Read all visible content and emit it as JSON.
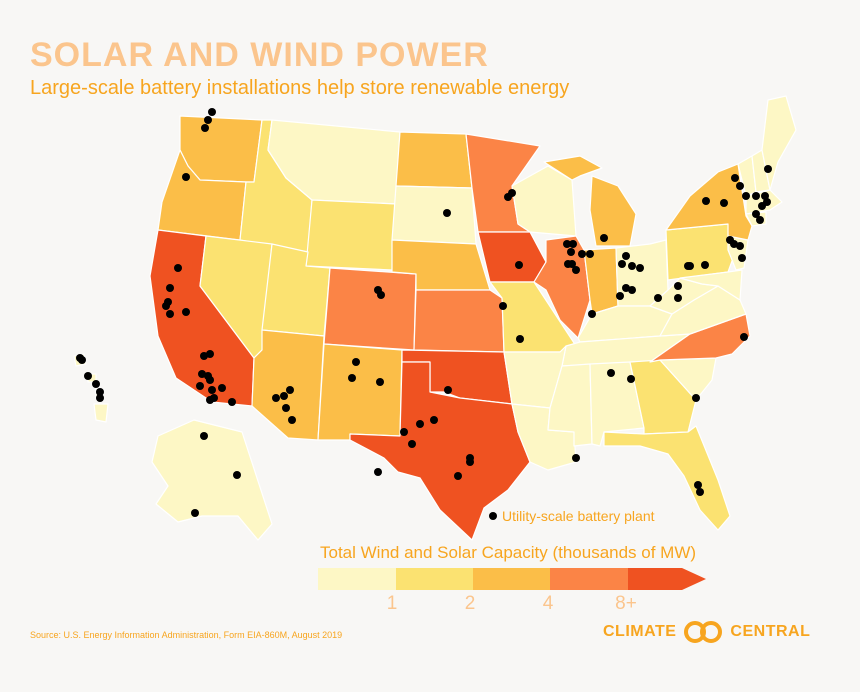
{
  "header": {
    "title": "SOLAR AND WIND POWER",
    "subtitle": "Large-scale battery installations help store renewable energy"
  },
  "map_labels": {
    "battery_legend": "Utility-scale battery plant"
  },
  "legend": {
    "title": "Total Wind and Solar Capacity (thousands of MW)",
    "ticks": [
      "1",
      "2",
      "4",
      "8+"
    ],
    "colors": [
      "#fdf7c5",
      "#fbe271",
      "#fbbe48",
      "#fb8446",
      "#ef5221"
    ]
  },
  "footer": {
    "source": "Source: U.S. Energy Information Administration, Form EIA-860M, August 2019",
    "logo_left": "CLIMATE",
    "logo_right": "CENTRAL"
  }
}
